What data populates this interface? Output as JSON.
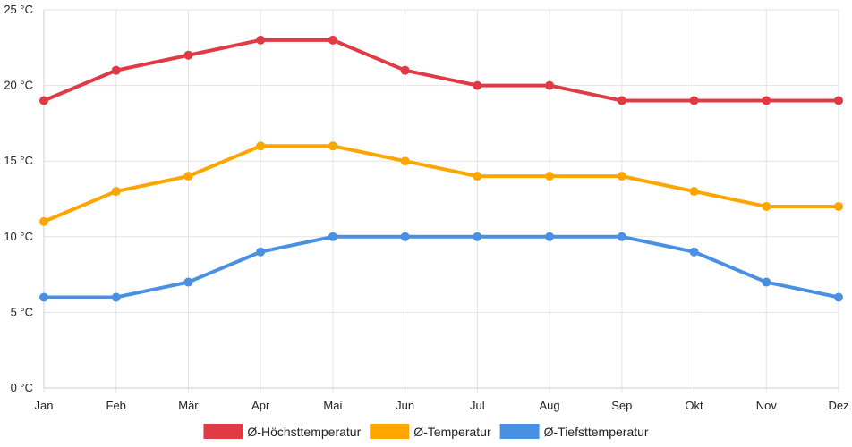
{
  "chart_data": {
    "type": "line",
    "categories": [
      "Jan",
      "Feb",
      "Mär",
      "Apr",
      "Mai",
      "Jun",
      "Jul",
      "Aug",
      "Sep",
      "Okt",
      "Nov",
      "Dez"
    ],
    "ylim": [
      0,
      25
    ],
    "yticks": [
      0,
      5,
      10,
      15,
      20,
      25
    ],
    "y_unit": "°C",
    "grid": true,
    "legend_position": "bottom",
    "series": [
      {
        "name": "Ø-Höchsttemperatur",
        "color": "#e03a45",
        "values": [
          19,
          21,
          22,
          23,
          23,
          21,
          20,
          20,
          19,
          19,
          19,
          19
        ]
      },
      {
        "name": "Ø-Temperatur",
        "color": "#ffa500",
        "values": [
          11,
          13,
          14,
          16,
          16,
          15,
          14,
          14,
          14,
          13,
          12,
          12
        ]
      },
      {
        "name": "Ø-Tiefsttemperatur",
        "color": "#4a90e2",
        "values": [
          6,
          6,
          7,
          9,
          10,
          10,
          10,
          10,
          10,
          9,
          7,
          6
        ]
      }
    ]
  }
}
